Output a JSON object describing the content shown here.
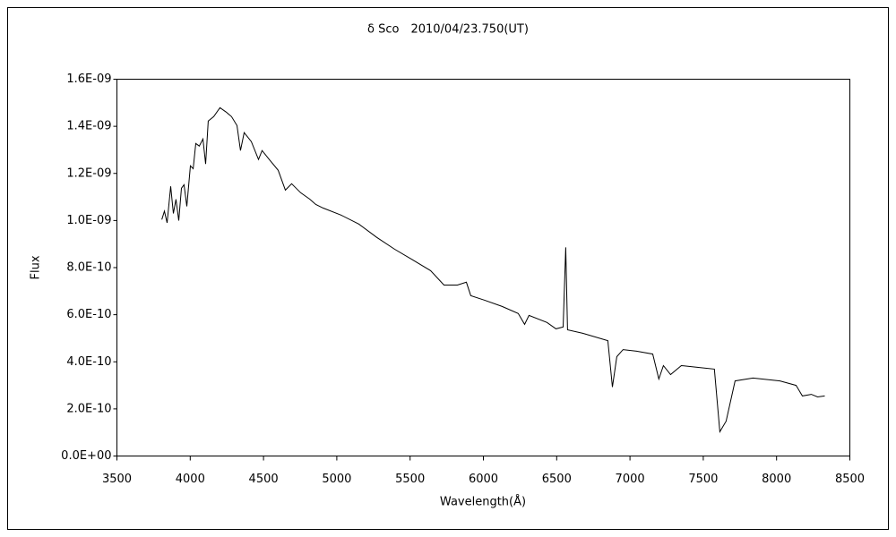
{
  "chart_data": {
    "type": "line",
    "title": "δ Sco　2010/04/23.750(UT)",
    "x_label": "Wavelength(Å)",
    "y_label": "Flux",
    "xlim": [
      3500,
      8500
    ],
    "xticks": [
      3500,
      4000,
      4500,
      5000,
      5500,
      6000,
      6500,
      7000,
      7500,
      8000,
      8500
    ],
    "ylim": [
      0,
      1.6e-09
    ],
    "yticks": [
      {
        "value": 0,
        "label": "0.0E+00"
      },
      {
        "value": 2e-10,
        "label": "2.0E-10"
      },
      {
        "value": 4e-10,
        "label": "4.0E-10"
      },
      {
        "value": 6e-10,
        "label": "6.0E-10"
      },
      {
        "value": 8e-10,
        "label": "8.0E-10"
      },
      {
        "value": 1e-09,
        "label": "1.0E-09"
      },
      {
        "value": 1.2e-09,
        "label": "1.2E-09"
      },
      {
        "value": 1.4e-09,
        "label": "1.4E-09"
      },
      {
        "value": 1.6e-09,
        "label": "1.6E-09"
      }
    ],
    "grid": false,
    "color": "#000000",
    "x": [
      3806,
      3824,
      3842,
      3867,
      3885,
      3903,
      3922,
      3940,
      3958,
      3977,
      4001,
      4020,
      4038,
      4062,
      4087,
      4105,
      4123,
      4160,
      4203,
      4246,
      4282,
      4319,
      4343,
      4368,
      4417,
      4466,
      4490,
      4539,
      4600,
      4649,
      4692,
      4753,
      4814,
      4857,
      4906,
      5029,
      5150,
      5273,
      5395,
      5517,
      5640,
      5731,
      5823,
      5884,
      5914,
      6006,
      6128,
      6238,
      6281,
      6311,
      6434,
      6495,
      6544,
      6562,
      6574,
      6678,
      6849,
      6880,
      6910,
      6953,
      7045,
      7155,
      7197,
      7228,
      7277,
      7350,
      7473,
      7576,
      7613,
      7656,
      7717,
      7839,
      8023,
      8133,
      8176,
      8237,
      8280,
      8329
    ],
    "values": [
      1.004e-09,
      1.04e-09,
      9.9e-10,
      1.145e-09,
      1.03e-09,
      1.09e-09,
      1e-09,
      1.137e-09,
      1.152e-09,
      1.06e-09,
      1.232e-09,
      1.22e-09,
      1.327e-09,
      1.316e-09,
      1.346e-09,
      1.24e-09,
      1.422e-09,
      1.441e-09,
      1.479e-09,
      1.46e-09,
      1.441e-09,
      1.403e-09,
      1.297e-09,
      1.373e-09,
      1.335e-09,
      1.259e-09,
      1.297e-09,
      1.259e-09,
      1.213e-09,
      1.129e-09,
      1.156e-09,
      1.118e-09,
      1.091e-09,
      1.068e-09,
      1.053e-09,
      1.023e-09,
      9.85e-10,
      9.28e-10,
      8.78e-10,
      8.33e-10,
      7.87e-10,
      7.26e-10,
      7.26e-10,
      7.38e-10,
      6.81e-10,
      6.62e-10,
      6.35e-10,
      6.05e-10,
      5.59e-10,
      5.97e-10,
      5.67e-10,
      5.4e-10,
      5.48e-10,
      8.86e-10,
      5.36e-10,
      5.21e-10,
      4.9e-10,
      2.93e-10,
      4.22e-10,
      4.52e-10,
      4.45e-10,
      4.33e-10,
      3.27e-10,
      3.84e-10,
      3.46e-10,
      3.84e-10,
      3.76e-10,
      3.69e-10,
      1.03e-10,
      1.48e-10,
      3.19e-10,
      3.31e-10,
      3.19e-10,
      3e-10,
      2.55e-10,
      2.62e-10,
      2.51e-10,
      2.55e-10
    ]
  }
}
